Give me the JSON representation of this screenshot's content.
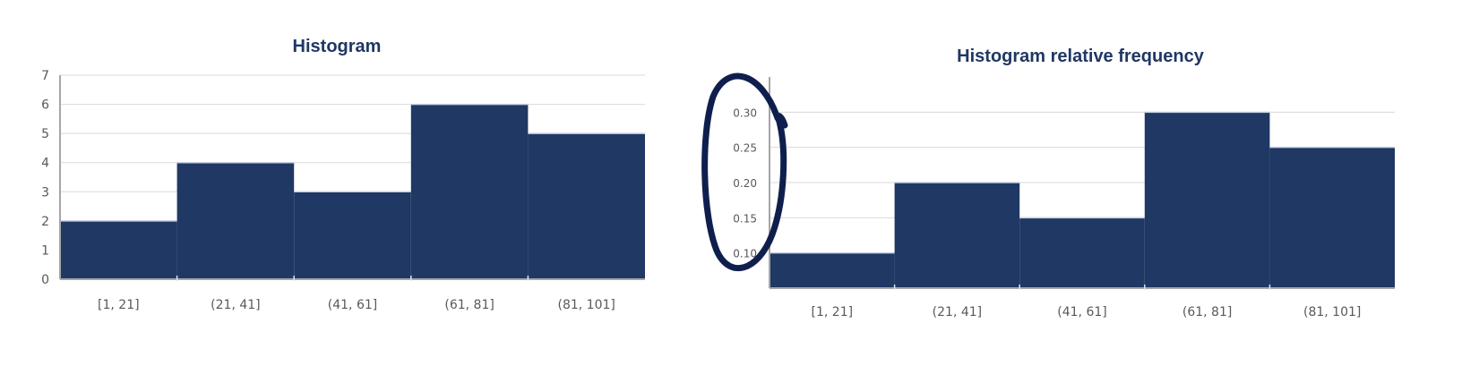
{
  "colors": {
    "bar": "#1f3864",
    "title": "#1f3864",
    "grid": "#d9d9d9",
    "tick_text": "#595959",
    "annotation": "#0f1f4d"
  },
  "chart_data": [
    {
      "type": "bar",
      "title": "Histogram",
      "categories": [
        "[1, 21]",
        "(21, 41]",
        "(41, 61]",
        "(61, 81]",
        "(81, 101]"
      ],
      "values": [
        2,
        4,
        3,
        6,
        5
      ],
      "xlabel": "",
      "ylabel": "",
      "ylim": [
        0,
        7
      ],
      "yticks": [
        "0",
        "1",
        "2",
        "3",
        "4",
        "5",
        "6",
        "7"
      ],
      "grid": true,
      "bar_gap": "none"
    },
    {
      "type": "bar",
      "title": "Histogram relative frequency",
      "categories": [
        "[1, 21]",
        "(21, 41]",
        "(41, 61]",
        "(61, 81]",
        "(81, 101]"
      ],
      "values": [
        0.1,
        0.2,
        0.15,
        0.3,
        0.25
      ],
      "xlabel": "",
      "ylabel": "",
      "ylim": [
        0.05,
        0.35
      ],
      "yticks": [
        "0.10",
        "0.15",
        "0.20",
        "0.25",
        "0.30"
      ],
      "grid": true,
      "bar_gap": "none",
      "annotation": "hand-drawn ellipse circling the y-axis tick labels"
    }
  ]
}
